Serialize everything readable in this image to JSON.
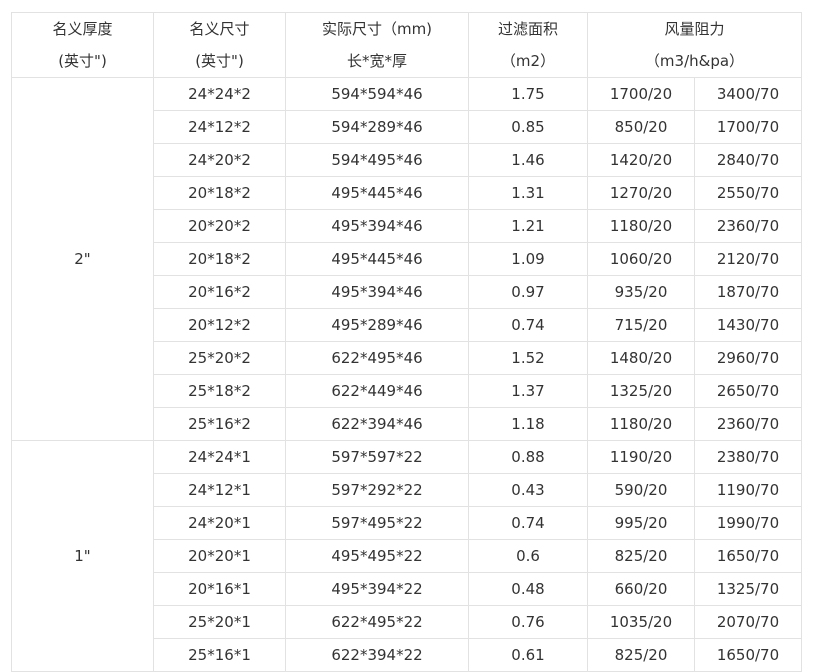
{
  "headers": [
    {
      "line1": "名义厚度",
      "line2": "(英寸\")"
    },
    {
      "line1": "名义尺寸",
      "line2": "(英寸\")"
    },
    {
      "line1": "实际尺寸（mm)",
      "line2": "长*宽*厚"
    },
    {
      "line1": "过滤面积",
      "line2": "（m2）"
    },
    {
      "line1": "风量阻力",
      "line2": "（m3/h&pa）"
    }
  ],
  "groups": [
    {
      "thickness": "2\"",
      "rows": [
        [
          "24*24*2",
          "594*594*46",
          "1.75",
          "1700/20",
          "3400/70"
        ],
        [
          "24*12*2",
          "594*289*46",
          "0.85",
          "850/20",
          "1700/70"
        ],
        [
          "24*20*2",
          "594*495*46",
          "1.46",
          "1420/20",
          "2840/70"
        ],
        [
          "20*18*2",
          "495*445*46",
          "1.31",
          "1270/20",
          "2550/70"
        ],
        [
          "20*20*2",
          "495*394*46",
          "1.21",
          "1180/20",
          "2360/70"
        ],
        [
          "20*18*2",
          "495*445*46",
          "1.09",
          "1060/20",
          "2120/70"
        ],
        [
          "20*16*2",
          "495*394*46",
          "0.97",
          "935/20",
          "1870/70"
        ],
        [
          "20*12*2",
          "495*289*46",
          "0.74",
          "715/20",
          "1430/70"
        ],
        [
          "25*20*2",
          "622*495*46",
          "1.52",
          "1480/20",
          "2960/70"
        ],
        [
          "25*18*2",
          "622*449*46",
          "1.37",
          "1325/20",
          "2650/70"
        ],
        [
          "25*16*2",
          "622*394*46",
          "1.18",
          "1180/20",
          "2360/70"
        ]
      ]
    },
    {
      "thickness": "1\"",
      "rows": [
        [
          "24*24*1",
          "597*597*22",
          "0.88",
          "1190/20",
          "2380/70"
        ],
        [
          "24*12*1",
          "597*292*22",
          "0.43",
          "590/20",
          "1190/70"
        ],
        [
          "24*20*1",
          "597*495*22",
          "0.74",
          "995/20",
          "1990/70"
        ],
        [
          "20*20*1",
          "495*495*22",
          "0.6",
          "825/20",
          "1650/70"
        ],
        [
          "20*16*1",
          "495*394*22",
          "0.48",
          "660/20",
          "1325/70"
        ],
        [
          "25*20*1",
          "622*495*22",
          "0.76",
          "1035/20",
          "2070/70"
        ],
        [
          "25*16*1",
          "622*394*22",
          "0.61",
          "825/20",
          "1650/70"
        ]
      ]
    }
  ]
}
